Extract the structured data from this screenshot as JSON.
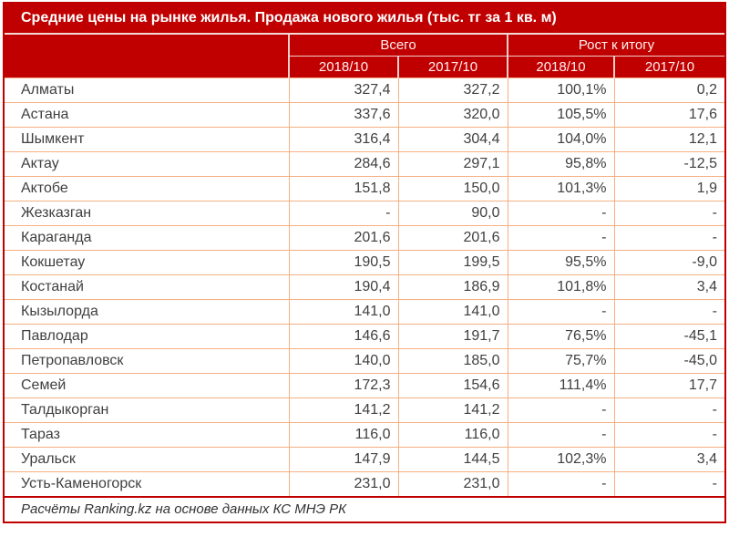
{
  "chart_data": {
    "type": "table",
    "title": "Средние цены на рынке жилья. Продажа нового жилья (тыс. тг за 1 кв. м)",
    "column_groups": [
      {
        "label": "Всего",
        "span": 2
      },
      {
        "label": "Рост к итогу",
        "span": 2
      }
    ],
    "sub_headers": [
      "2018/10",
      "2017/10",
      "2018/10",
      "2017/10"
    ],
    "rows": [
      {
        "city": "Алматы",
        "values": [
          "327,4",
          "327,2",
          "100,1%",
          "0,2"
        ]
      },
      {
        "city": "Астана",
        "values": [
          "337,6",
          "320,0",
          "105,5%",
          "17,6"
        ]
      },
      {
        "city": "Шымкент",
        "values": [
          "316,4",
          "304,4",
          "104,0%",
          "12,1"
        ]
      },
      {
        "city": "Актау",
        "values": [
          "284,6",
          "297,1",
          "95,8%",
          "-12,5"
        ]
      },
      {
        "city": "Актобе",
        "values": [
          "151,8",
          "150,0",
          "101,3%",
          "1,9"
        ]
      },
      {
        "city": "Жезказган",
        "values": [
          "-",
          "90,0",
          "-",
          "-"
        ]
      },
      {
        "city": "Караганда",
        "values": [
          "201,6",
          "201,6",
          "-",
          "-"
        ]
      },
      {
        "city": "Кокшетау",
        "values": [
          "190,5",
          "199,5",
          "95,5%",
          "-9,0"
        ]
      },
      {
        "city": "Костанай",
        "values": [
          "190,4",
          "186,9",
          "101,8%",
          "3,4"
        ]
      },
      {
        "city": "Кызылорда",
        "values": [
          "141,0",
          "141,0",
          "-",
          "-"
        ]
      },
      {
        "city": "Павлодар",
        "values": [
          "146,6",
          "191,7",
          "76,5%",
          "-45,1"
        ]
      },
      {
        "city": "Петропавловск",
        "values": [
          "140,0",
          "185,0",
          "75,7%",
          "-45,0"
        ]
      },
      {
        "city": "Семей",
        "values": [
          "172,3",
          "154,6",
          "111,4%",
          "17,7"
        ]
      },
      {
        "city": "Талдыкорган",
        "values": [
          "141,2",
          "141,2",
          "-",
          "-"
        ]
      },
      {
        "city": "Тараз",
        "values": [
          "116,0",
          "116,0",
          "-",
          "-"
        ]
      },
      {
        "city": "Уральск",
        "values": [
          "147,9",
          "144,5",
          "102,3%",
          "3,4"
        ]
      },
      {
        "city": "Усть-Каменогорск",
        "values": [
          "231,0",
          "231,0",
          "-",
          "-"
        ]
      }
    ],
    "footer": "Расчёты Ranking.kz на основе данных КС МНЭ РК"
  },
  "colors": {
    "header_bg": "#C00000",
    "outer_border": "#C00000",
    "grid_line": "#F5B082",
    "header_divider": "#EFD0CC",
    "body_text": "#404040",
    "header_text": "#FFFFFF"
  }
}
